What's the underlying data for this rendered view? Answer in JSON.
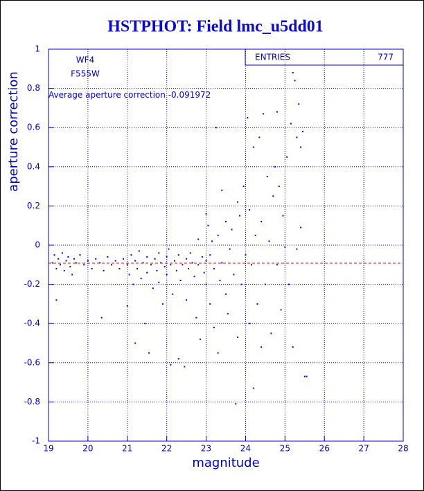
{
  "chart_data": {
    "type": "scatter",
    "title": "HSTPHOT: Field lmc_u5dd01",
    "x_label": "magnitude",
    "y_label": "aperture correction",
    "annotations": [
      "WF4",
      "F555W"
    ],
    "average": {
      "label": "Average aperture correction",
      "value": -0.091972,
      "color": "#ff0000"
    },
    "stats": {
      "label": "ENTRIES",
      "value": 777
    },
    "color": "#0000ff",
    "grid": true,
    "xlim": [
      19,
      28
    ],
    "xticks": [
      19,
      20,
      21,
      22,
      23,
      24,
      25,
      26,
      27,
      28
    ],
    "ylim": [
      -1,
      1
    ],
    "yticks": [
      -1,
      -0.8,
      -0.6,
      -0.4,
      -0.2,
      0,
      0.2,
      0.4,
      0.6,
      0.8,
      1
    ],
    "x": [
      19.1,
      19.15,
      19.2,
      19.2,
      19.25,
      19.3,
      19.35,
      19.4,
      19.45,
      19.5,
      19.55,
      19.6,
      19.65,
      19.7,
      19.8,
      19.9,
      20.0,
      20.1,
      20.2,
      20.3,
      20.35,
      20.4,
      20.5,
      20.6,
      20.7,
      20.8,
      20.9,
      21.0,
      21.0,
      21.05,
      21.1,
      21.15,
      21.2,
      21.2,
      21.25,
      21.3,
      21.35,
      21.4,
      21.45,
      21.5,
      21.5,
      21.55,
      21.6,
      21.65,
      21.7,
      21.75,
      21.8,
      21.8,
      21.85,
      21.9,
      21.95,
      22.0,
      22.0,
      22.05,
      22.1,
      22.1,
      22.15,
      22.2,
      22.25,
      22.3,
      22.3,
      22.35,
      22.4,
      22.45,
      22.5,
      22.5,
      22.55,
      22.6,
      22.65,
      22.7,
      22.75,
      22.8,
      22.8,
      22.85,
      22.9,
      22.95,
      23.0,
      23.0,
      23.0,
      23.05,
      23.1,
      23.1,
      23.15,
      23.2,
      23.2,
      23.25,
      23.3,
      23.3,
      23.35,
      23.4,
      23.4,
      23.5,
      23.5,
      23.55,
      23.6,
      23.65,
      23.7,
      23.75,
      23.8,
      23.8,
      23.85,
      23.9,
      23.95,
      24.0,
      24.05,
      24.1,
      24.1,
      24.15,
      24.2,
      24.2,
      24.25,
      24.3,
      24.35,
      24.4,
      24.4,
      24.45,
      24.5,
      24.55,
      24.6,
      24.65,
      24.7,
      24.75,
      24.8,
      24.8,
      24.85,
      24.9,
      24.95,
      25.0,
      25.05,
      25.1,
      25.15,
      25.2,
      25.2,
      25.25,
      25.3,
      25.3,
      25.35,
      25.4,
      25.45,
      25.5,
      25.55,
      25.4
    ],
    "values": [
      -0.09,
      -0.05,
      -0.12,
      -0.28,
      -0.07,
      -0.1,
      -0.04,
      -0.13,
      -0.08,
      -0.06,
      -0.11,
      -0.15,
      -0.07,
      -0.09,
      -0.05,
      -0.1,
      -0.08,
      -0.12,
      -0.07,
      -0.09,
      -0.37,
      -0.13,
      -0.06,
      -0.1,
      -0.08,
      -0.12,
      -0.07,
      -0.31,
      -0.1,
      -0.15,
      -0.05,
      -0.2,
      -0.5,
      -0.08,
      -0.12,
      -0.03,
      -0.17,
      -0.09,
      -0.4,
      -0.06,
      -0.14,
      -0.55,
      -0.1,
      -0.22,
      -0.07,
      -0.13,
      -0.04,
      -0.19,
      -0.09,
      -0.3,
      -0.11,
      -0.06,
      -0.15,
      -0.02,
      -0.61,
      -0.1,
      -0.25,
      -0.08,
      -0.13,
      -0.58,
      -0.05,
      -0.18,
      -0.1,
      -0.62,
      -0.07,
      -0.28,
      -0.12,
      -0.04,
      -0.09,
      -0.16,
      -0.37,
      0.03,
      -0.1,
      -0.48,
      -0.06,
      -0.14,
      0.16,
      -0.2,
      -0.08,
      0.1,
      -0.3,
      -0.05,
      0.02,
      -0.42,
      -0.12,
      0.6,
      -0.55,
      0.05,
      -0.18,
      0.28,
      -0.09,
      -0.25,
      0.12,
      -0.35,
      -0.02,
      0.08,
      -0.15,
      -0.81,
      0.22,
      -0.47,
      0.15,
      -0.2,
      0.3,
      -0.05,
      0.65,
      0.18,
      -0.4,
      -0.1,
      -0.73,
      0.5,
      0.05,
      -0.3,
      0.55,
      0.12,
      -0.52,
      0.67,
      -0.2,
      0.35,
      0.02,
      -0.45,
      0.25,
      0.4,
      -0.1,
      0.68,
      0.3,
      -0.33,
      0.15,
      -0.01,
      0.45,
      -0.2,
      0.62,
      0.88,
      -0.52,
      0.84,
      0.55,
      -0.02,
      0.72,
      0.5,
      0.58,
      -0.67,
      -0.67,
      0.09
    ]
  }
}
